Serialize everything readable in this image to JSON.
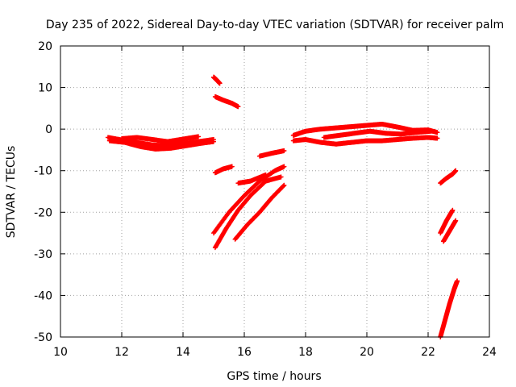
{
  "chart_data": {
    "type": "scatter",
    "title": "Day 235 of 2022, Sidereal Day-to-day VTEC variation (SDTVAR) for receiver palm",
    "xlabel": "GPS time / hours",
    "ylabel": "SDTVAR / TECUs",
    "xlim": [
      10,
      24
    ],
    "ylim": [
      -50,
      20
    ],
    "xticks": [
      10,
      12,
      14,
      16,
      18,
      20,
      22,
      24
    ],
    "yticks": [
      20,
      10,
      0,
      -10,
      -20,
      -30,
      -40,
      -50
    ],
    "grid": true,
    "marker": "+",
    "series_color": "#ff0000",
    "series": [
      {
        "x": [
          11.55,
          12.0,
          12.5,
          13.0,
          13.5,
          14.0,
          14.5,
          15.0
        ],
        "y": [
          -2.0,
          -2.6,
          -3.2,
          -3.8,
          -4.0,
          -3.5,
          -3.0,
          -2.5
        ]
      },
      {
        "x": [
          11.6,
          12.1,
          12.6,
          13.1,
          13.6,
          14.1,
          14.6,
          15.0
        ],
        "y": [
          -2.8,
          -3.2,
          -4.2,
          -4.8,
          -4.6,
          -4.0,
          -3.4,
          -3.0
        ]
      },
      {
        "x": [
          12.0,
          12.5,
          13.0,
          13.5,
          14.0,
          14.5
        ],
        "y": [
          -2.3,
          -2.0,
          -2.5,
          -3.0,
          -2.4,
          -1.8
        ]
      },
      {
        "x": [
          15.0,
          15.1,
          15.2
        ],
        "y": [
          12.5,
          11.8,
          11.0
        ]
      },
      {
        "x": [
          15.05,
          15.3,
          15.6,
          15.8
        ],
        "y": [
          7.8,
          7.0,
          6.2,
          5.4
        ]
      },
      {
        "x": [
          15.05,
          15.3,
          15.6
        ],
        "y": [
          -10.5,
          -9.6,
          -9.0
        ]
      },
      {
        "x": [
          15.0,
          15.5,
          16.0,
          16.5,
          17.0,
          17.3
        ],
        "y": [
          -25.0,
          -20.0,
          -16.0,
          -12.5,
          -10.0,
          -9.0
        ]
      },
      {
        "x": [
          15.05,
          15.4,
          15.8,
          16.2,
          16.7,
          17.2
        ],
        "y": [
          -28.5,
          -24.0,
          -19.5,
          -16.0,
          -12.5,
          -11.5
        ]
      },
      {
        "x": [
          15.7,
          16.1,
          16.5,
          16.9,
          17.3
        ],
        "y": [
          -26.5,
          -23.0,
          -20.0,
          -16.5,
          -13.5
        ]
      },
      {
        "x": [
          15.8,
          16.2,
          16.7
        ],
        "y": [
          -13.0,
          -12.5,
          -11.0
        ]
      },
      {
        "x": [
          16.5,
          16.9,
          17.3
        ],
        "y": [
          -6.5,
          -5.8,
          -5.2
        ]
      },
      {
        "x": [
          17.6,
          18.0,
          18.5,
          19.0,
          19.5,
          20.0,
          20.5,
          21.0,
          21.5,
          22.0,
          22.3
        ],
        "y": [
          -1.5,
          -0.5,
          0.0,
          0.3,
          0.6,
          0.9,
          1.2,
          0.5,
          -0.3,
          -0.2,
          -0.8
        ]
      },
      {
        "x": [
          17.6,
          18.0,
          18.5,
          19.0,
          19.5,
          20.0,
          20.5,
          21.0,
          21.5,
          22.0,
          22.3
        ],
        "y": [
          -2.8,
          -2.5,
          -3.2,
          -3.6,
          -3.2,
          -2.8,
          -2.8,
          -2.5,
          -2.2,
          -2.0,
          -2.2
        ]
      },
      {
        "x": [
          18.6,
          19.1,
          19.6,
          20.1,
          20.6,
          21.1,
          21.6,
          22.1
        ],
        "y": [
          -2.0,
          -1.5,
          -1.0,
          -0.5,
          -1.0,
          -1.2,
          -0.8,
          -0.5
        ]
      },
      {
        "x": [
          22.4,
          22.6,
          22.8,
          22.9
        ],
        "y": [
          -13.0,
          -11.8,
          -10.8,
          -10.0
        ]
      },
      {
        "x": [
          22.4,
          22.6,
          22.8
        ],
        "y": [
          -25.0,
          -22.0,
          -19.5
        ]
      },
      {
        "x": [
          22.5,
          22.7,
          22.9
        ],
        "y": [
          -27.0,
          -24.5,
          -22.0
        ]
      },
      {
        "x": [
          22.4,
          22.55,
          22.7,
          22.85,
          22.95
        ],
        "y": [
          -50.0,
          -46.0,
          -42.0,
          -38.5,
          -36.5
        ]
      }
    ]
  }
}
